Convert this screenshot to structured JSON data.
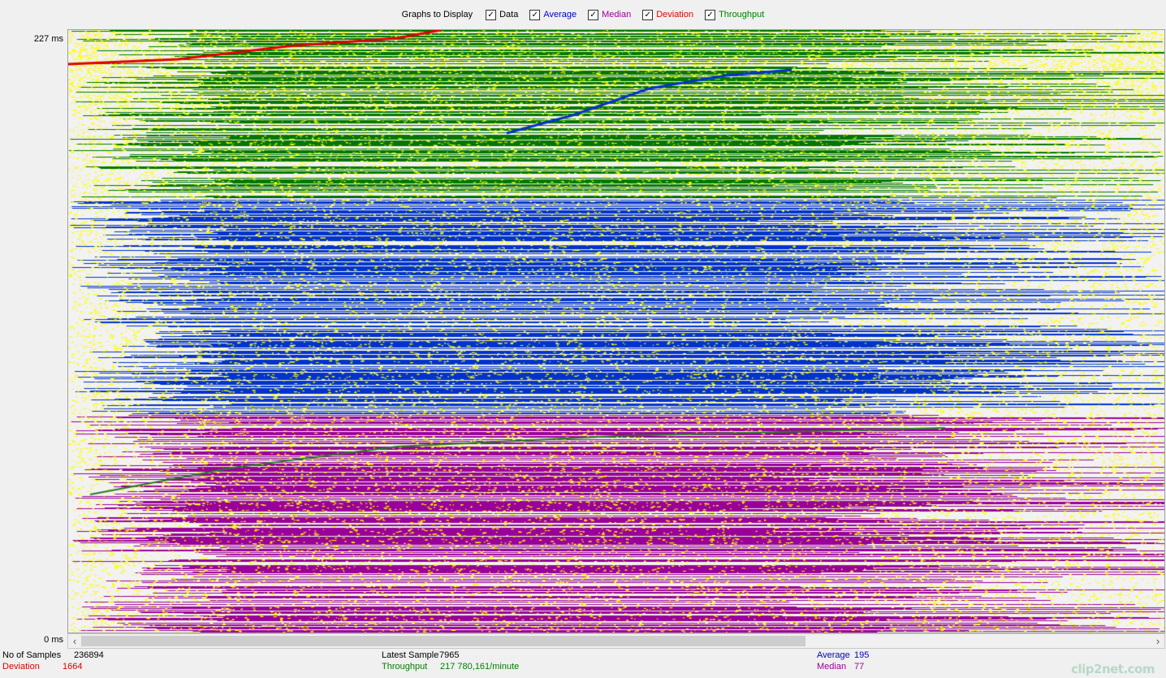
{
  "legend": {
    "title": "Graphs to Display",
    "items": [
      {
        "key": "data",
        "label": "Data",
        "checked": true,
        "color": "#000000"
      },
      {
        "key": "average",
        "label": "Average",
        "checked": true,
        "color": "#0000cc"
      },
      {
        "key": "median",
        "label": "Median",
        "checked": true,
        "color": "#990099"
      },
      {
        "key": "deviation",
        "label": "Deviation",
        "checked": true,
        "color": "#e00000"
      },
      {
        "key": "throughput",
        "label": "Throughput",
        "checked": true,
        "color": "#008000"
      }
    ]
  },
  "axis": {
    "top_label": "227  ms",
    "bottom_label": "0  ms"
  },
  "stats": {
    "samples_label": "No of Samples",
    "samples_value": "236894",
    "deviation_label": "Deviation",
    "deviation_value": "1664",
    "latest_label": "Latest Sample",
    "latest_value": "7965",
    "throughput_label": "Throughput",
    "throughput_value": "217 780,161/minute",
    "average_label": "Average",
    "average_value": "195",
    "median_label": "Median",
    "median_value": "77"
  },
  "watermark": "clip2net.com",
  "colors": {
    "data": "#ffff00",
    "average": "#0033cc",
    "median": "#990099",
    "deviation": "#e00000",
    "throughput": "#007700",
    "plot_bg": "#f2f2f2"
  },
  "chart_data": {
    "type": "scatter",
    "y_unit": "ms",
    "ylim": [
      0,
      227
    ],
    "bands": [
      {
        "series": "throughput",
        "y_from": 227,
        "y_to": 164
      },
      {
        "series": "average",
        "y_from": 164,
        "y_to": 82
      },
      {
        "series": "median",
        "y_from": 82,
        "y_to": 0
      }
    ],
    "trend_lines": {
      "deviation": [
        [
          0,
          214
        ],
        [
          0.1,
          216
        ],
        [
          0.2,
          221
        ],
        [
          0.3,
          224
        ],
        [
          0.34,
          227
        ]
      ],
      "average": [
        [
          0.4,
          188
        ],
        [
          0.46,
          195
        ],
        [
          0.53,
          205
        ],
        [
          0.6,
          210
        ],
        [
          0.66,
          212
        ]
      ],
      "median": [
        [
          0.02,
          52
        ],
        [
          0.15,
          62
        ],
        [
          0.3,
          70
        ],
        [
          0.5,
          74
        ],
        [
          0.8,
          77
        ]
      ]
    }
  }
}
